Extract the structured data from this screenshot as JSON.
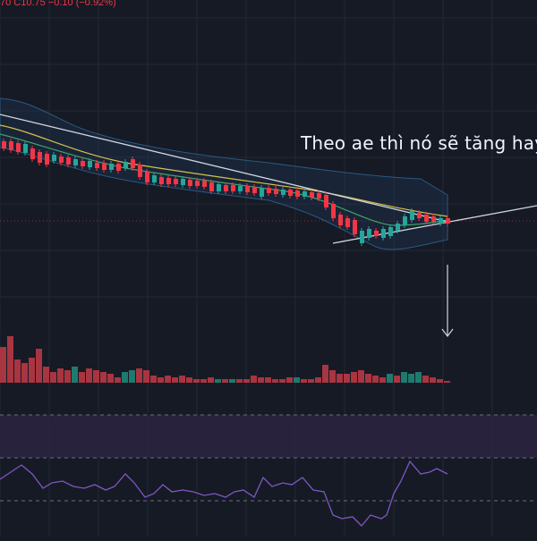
{
  "header": {
    "ohlc_text": "70  C10.75  −0.10 (−0.92%)"
  },
  "annotation": {
    "text": "Theo ae thì nó sẽ tăng hay"
  },
  "colors": {
    "background": "#161a25",
    "grid": "#242836",
    "up": "#26a69a",
    "down": "#f23645",
    "bollinger_fill": "#1f3a5a",
    "bollinger_line": "#2a5a80",
    "ma_yellow": "#d4c24a",
    "ma_green": "#3fa46a",
    "trend_line": "#d1d4dc",
    "rsi_line": "#7e57c2",
    "rsi_band": "#2a2340",
    "volume_up": "#1f7a6e",
    "volume_down": "#a83540"
  },
  "indicators": {
    "price_panel": "candles-bollinger-ma",
    "volume_panel": "volume-bars",
    "oscillator_panel": "rsi"
  }
}
